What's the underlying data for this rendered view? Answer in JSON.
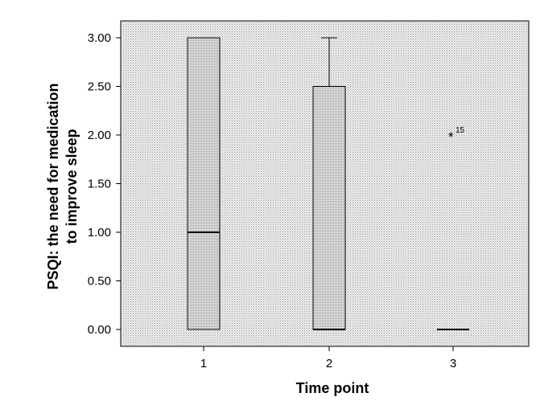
{
  "chart_data": {
    "type": "boxplot",
    "xlabel": "Time point",
    "ylabel_lines": [
      "PSQI: the need for medication",
      "to improve sleep"
    ],
    "ylim": [
      -0.17,
      3.18
    ],
    "yticks": [
      "0.00",
      "0.50",
      "1.00",
      "1.50",
      "2.00",
      "2.50",
      "3.00"
    ],
    "ytick_values": [
      0,
      0.5,
      1,
      1.5,
      2,
      2.5,
      3
    ],
    "categories": [
      "1",
      "2",
      "3"
    ],
    "boxes": [
      {
        "category": "1",
        "min": 0,
        "q1": 0,
        "median": 1,
        "q3": 3,
        "max": 3
      },
      {
        "category": "2",
        "min": 0,
        "q1": 0,
        "median": 0,
        "q3": 2.5,
        "max": 3
      },
      {
        "category": "3",
        "min": 0,
        "q1": 0,
        "median": 0,
        "q3": 0,
        "max": 0
      }
    ],
    "outliers": [
      {
        "category": "3",
        "value": 2,
        "marker": "*",
        "label": "15"
      }
    ],
    "colors": {
      "plot_background": "#e6e6e6",
      "box_fill": "#d4d4d4",
      "line": "#000000"
    }
  }
}
